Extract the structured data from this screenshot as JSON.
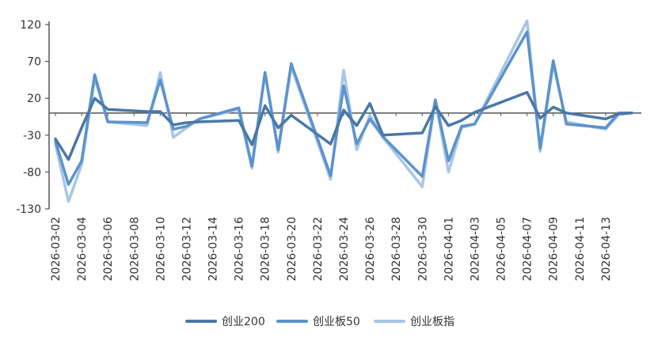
{
  "chart_data": {
    "type": "line",
    "title": "",
    "xlabel": "",
    "ylabel": "",
    "ylim": [
      -130,
      120
    ],
    "yticks": [
      120,
      70,
      20,
      -30,
      -80,
      -130
    ],
    "grid": false,
    "legend": "bottom-center",
    "x": [
      "2026-03-02",
      "2026-03-03",
      "2026-03-04",
      "2026-03-05",
      "2026-03-06",
      "2026-03-09",
      "2026-03-10",
      "2026-03-11",
      "2026-03-12",
      "2026-03-13",
      "2026-03-16",
      "2026-03-17",
      "2026-03-18",
      "2026-03-19",
      "2026-03-20",
      "2026-03-23",
      "2026-03-24",
      "2026-03-25",
      "2026-03-26",
      "2026-03-27",
      "2026-03-30",
      "2026-03-31",
      "2026-04-01",
      "2026-04-02",
      "2026-04-03",
      "2026-04-07",
      "2026-04-08",
      "2026-04-09",
      "2026-04-10",
      "2026-04-13",
      "2026-04-14",
      "2026-04-15"
    ],
    "xtick_labels": [
      "2026-03-02",
      "2026-03-04",
      "2026-03-06",
      "2026-03-08",
      "2026-03-10",
      "2026-03-12",
      "2026-03-14",
      "2026-03-16",
      "2026-03-18",
      "2026-03-20",
      "2026-03-22",
      "2026-03-24",
      "2026-03-26",
      "2026-03-28",
      "2026-03-30",
      "2026-04-01",
      "2026-04-03",
      "2026-04-05",
      "2026-04-07",
      "2026-04-09",
      "2026-04-11",
      "2026-04-13"
    ],
    "series": [
      {
        "name": "创业200",
        "color": "#4a78a6",
        "values": [
          -35,
          -63,
          -20,
          20,
          5,
          2,
          2,
          -16,
          -13,
          -12,
          -10,
          -43,
          10,
          -20,
          -3,
          -42,
          4,
          -17,
          13,
          -30,
          -27,
          9,
          -17,
          -10,
          1,
          28,
          -7,
          8,
          0,
          -8,
          -1,
          0
        ]
      },
      {
        "name": "创业板50",
        "color": "#5b93cc",
        "values": [
          -38,
          -97,
          -65,
          52,
          -12,
          -13,
          45,
          -22,
          -18,
          -8,
          7,
          -72,
          55,
          -50,
          67,
          -85,
          37,
          -42,
          -8,
          -32,
          -86,
          18,
          -65,
          -18,
          -15,
          110,
          -48,
          71,
          -15,
          -20,
          0,
          0
        ]
      },
      {
        "name": "创业板指",
        "color": "#a8c6e6",
        "values": [
          -42,
          -120,
          -70,
          47,
          -12,
          -17,
          55,
          -33,
          -20,
          -8,
          5,
          -75,
          55,
          -53,
          63,
          -90,
          58,
          -50,
          -3,
          -33,
          -100,
          18,
          -80,
          -20,
          -15,
          125,
          -52,
          66,
          -12,
          -22,
          -2,
          0
        ]
      }
    ]
  }
}
